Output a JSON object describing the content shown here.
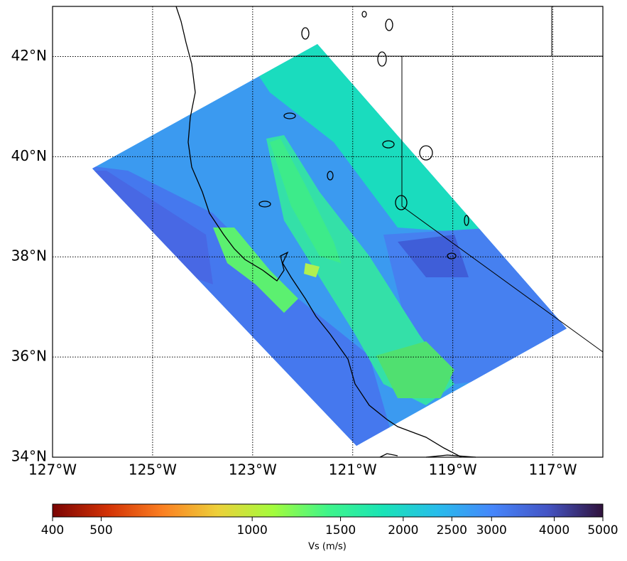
{
  "chart_data": {
    "type": "map",
    "xlim": [
      -127,
      -116
    ],
    "ylim": [
      34,
      43
    ],
    "xticks": [
      {
        "value": -127,
        "label": "127°W"
      },
      {
        "value": -125,
        "label": "125°W"
      },
      {
        "value": -123,
        "label": "123°W"
      },
      {
        "value": -121,
        "label": "121°W"
      },
      {
        "value": -119,
        "label": "119°W"
      },
      {
        "value": -117,
        "label": "117°W"
      }
    ],
    "yticks": [
      {
        "value": 34,
        "label": "34°N"
      },
      {
        "value": 36,
        "label": "36°N"
      },
      {
        "value": 38,
        "label": "38°N"
      },
      {
        "value": 40,
        "label": "40°N"
      },
      {
        "value": 42,
        "label": "42°N"
      }
    ],
    "grid": true,
    "colorbar": {
      "label": "Vs (m/s)",
      "clim": [
        400,
        5000
      ],
      "log_scale": true,
      "ticks": [
        400,
        500,
        1000,
        1500,
        2000,
        2500,
        3000,
        4000,
        5000
      ],
      "colors": [
        "#7a0403",
        "#d23105",
        "#fb8022",
        "#edd03a",
        "#a4fc3c",
        "#3ff58a",
        "#1ae4b6",
        "#28bceb",
        "#4686fb",
        "#4454c4",
        "#30123b"
      ]
    }
  }
}
